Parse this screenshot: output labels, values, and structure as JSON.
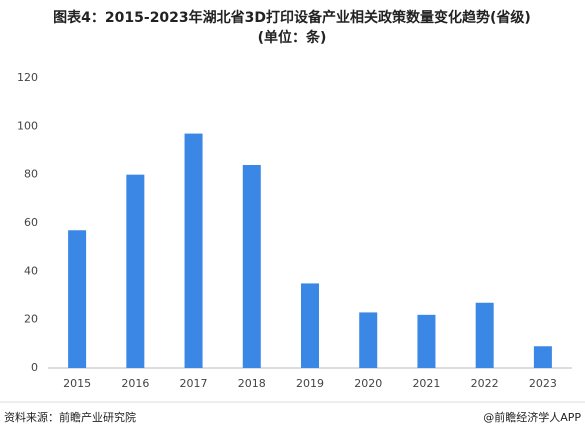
{
  "chart_data": {
    "type": "bar",
    "title": "图表4：2015-2023年湖北省3D打印设备产业相关政策数量变化趋势(省级)",
    "subtitle": "(单位：条)",
    "categories": [
      "2015",
      "2016",
      "2017",
      "2018",
      "2019",
      "2020",
      "2021",
      "2022",
      "2023"
    ],
    "values": [
      57,
      80,
      97,
      84,
      35,
      23,
      22,
      27,
      9
    ],
    "color": "#3a87e6",
    "ylim": [
      0,
      120
    ],
    "yticks": [
      0,
      20,
      40,
      60,
      80,
      100,
      120
    ],
    "grid": false,
    "source": "资料来源：前瞻产业研究院",
    "credit": "@前瞻经济学人APP"
  }
}
